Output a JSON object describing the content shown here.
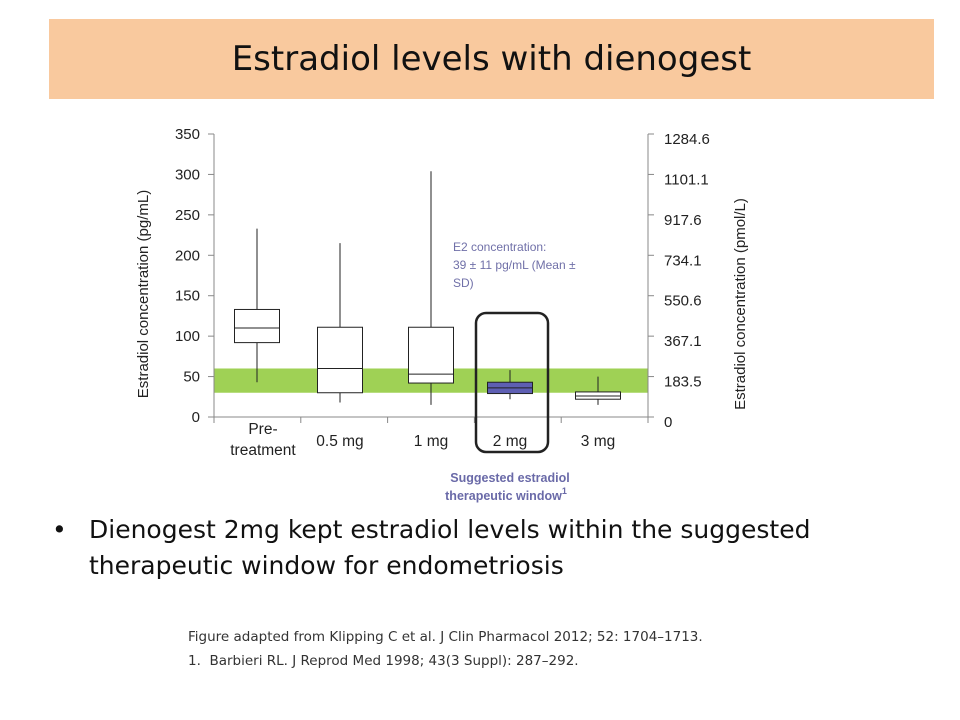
{
  "slide": {
    "title": "Estradiol levels with dienogest",
    "bullet_marker": "•",
    "bullet_text": "Dienogest 2mg kept estradiol levels within the suggested therapeutic window for endometriosis",
    "footnotes": [
      "Figure adapted from Klipping C et al. J Clin Pharmacol 2012; 52: 1704–1713.",
      "1.  Barbieri RL. J Reprod Med 1998; 43(3 Suppl): 287–292."
    ]
  },
  "chart_data": {
    "type": "boxplot",
    "ylabel": "Estradiol concentration (pg/mL)",
    "y2label": "Estradiol concentration (pmol/L)",
    "ylim": [
      0,
      350
    ],
    "yticks": [
      "0",
      "50",
      "100",
      "150",
      "200",
      "250",
      "300",
      "350"
    ],
    "y2ticks": [
      "0",
      "183.5",
      "367.1",
      "550.6",
      "734.1",
      "917.6",
      "1101.1",
      "1284.6"
    ],
    "categories": [
      {
        "label": "Pre-\ntreatment"
      },
      {
        "label": "0.5 mg"
      },
      {
        "label": "1 mg"
      },
      {
        "label": "2 mg"
      },
      {
        "label": "3 mg"
      }
    ],
    "boxes": [
      {
        "min": 43,
        "q1": 92,
        "median": 110,
        "q3": 133,
        "max": 233,
        "highlight": false
      },
      {
        "min": 18,
        "q1": 30,
        "median": 60,
        "q3": 111,
        "max": 215,
        "highlight": false
      },
      {
        "min": 15,
        "q1": 42,
        "median": 53,
        "q3": 111,
        "max": 304,
        "highlight": false
      },
      {
        "min": 22,
        "q1": 29,
        "median": 36,
        "q3": 43,
        "max": 58,
        "highlight": true
      },
      {
        "min": 15,
        "q1": 22,
        "median": 26,
        "q3": 31,
        "max": 50,
        "highlight": false
      }
    ],
    "therapeutic_window": {
      "low": 30,
      "high": 60,
      "label": "Suggested estradiol therapeutic window",
      "superscript": "1"
    },
    "annotation": "E2 concentration:\n39 ± 11 pg/mL (Mean ±\nSD)",
    "colors": {
      "window": "#9fd155",
      "highlight_box": "#5e5fb3",
      "annotation": "#7070a8",
      "window_label": "#6a6aa8"
    }
  }
}
